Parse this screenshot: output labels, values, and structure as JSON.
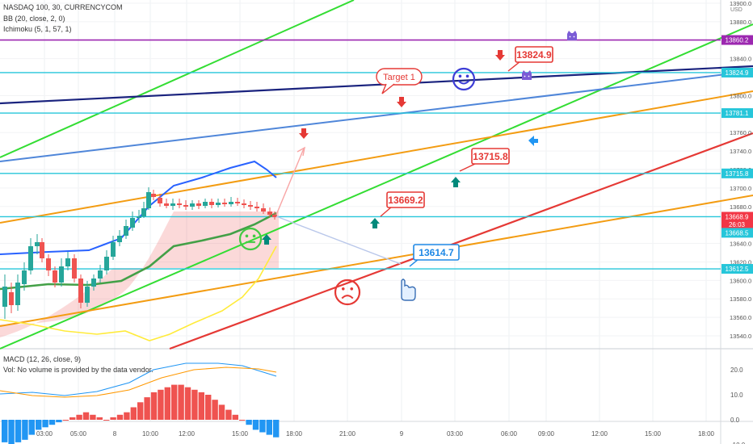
{
  "chart_data": {
    "type": "line",
    "instrument_title": "NASDAQ 100, 30, CURRENCYCOM",
    "indicators": [
      "BB (20, close, 2, 0)",
      "Ichimoku (5, 1, 57, 1)"
    ],
    "currency": "USD",
    "price_axis": {
      "range": [
        13530,
        13920
      ],
      "ticks": [
        13900.0,
        13880.0,
        13840.0,
        13800.0,
        13760.0,
        13740.0,
        13720.0,
        13700.0,
        13680.0,
        13640.0,
        13620.0,
        13600.0,
        13580.0,
        13560.0,
        13540.0
      ]
    },
    "time_axis": {
      "ticks": [
        "03:00",
        "05:00",
        "8",
        "10:00",
        "12:00",
        "15:00",
        "18:00",
        "21:00",
        "9",
        "03:00",
        "06:00",
        "09:00",
        "12:00",
        "15:00",
        "18:00"
      ]
    },
    "price_labels": [
      {
        "text": "13860.2",
        "price": 13860.2,
        "color": "#9c27b0"
      },
      {
        "text": "13824.9",
        "price": 13824.9,
        "color": "#26c6da"
      },
      {
        "text": "13781.1",
        "price": 13781.1,
        "color": "#26c6da"
      },
      {
        "text": "13715.8",
        "price": 13715.8,
        "color": "#26c6da"
      },
      {
        "text": "13668.9",
        "price": 13668.9,
        "color": "#f23645"
      },
      {
        "text": "26:03",
        "price": 13660.5,
        "color": "#f23645"
      },
      {
        "text": "13668.5",
        "price": 13651.5,
        "color": "#26c6da"
      },
      {
        "text": "13612.5",
        "price": 13612.5,
        "color": "#26c6da"
      }
    ],
    "horizontal_levels": [
      {
        "price": 13860.2,
        "color": "#9c27b0"
      },
      {
        "price": 13824.9,
        "color": "#26c6da"
      },
      {
        "price": 13781.1,
        "color": "#26c6da"
      },
      {
        "price": 13715.8,
        "color": "#26c6da"
      },
      {
        "price": 13668.9,
        "color": "#26c6da"
      },
      {
        "price": 13612.5,
        "color": "#26c6da"
      }
    ],
    "annotations": [
      {
        "text": "Target 1",
        "color": "#e53935"
      },
      {
        "text": "13824.9",
        "color": "#e53935"
      },
      {
        "text": "13715.8",
        "color": "#e53935"
      },
      {
        "text": "13669.2",
        "color": "#e53935"
      },
      {
        "text": "13614.7",
        "color": "#1e88e5"
      }
    ],
    "macd_panel": {
      "title": "MACD (12, 26, close, 9)",
      "note": "Vol: No volume is provided by the data vendor.",
      "ticks": [
        "20.0",
        "10.0",
        "0.0",
        "-10.0"
      ],
      "range": [
        -14,
        26
      ],
      "histogram": [
        -9,
        -10,
        -9,
        -8,
        -6,
        -4,
        -3,
        -2,
        -1,
        0,
        1,
        2,
        3,
        2,
        1,
        0,
        1,
        2,
        3,
        5,
        7,
        9,
        11,
        12,
        13,
        14,
        14,
        13,
        12,
        11,
        10,
        8,
        6,
        4,
        2,
        0,
        -2,
        -4,
        -5,
        -6,
        -7
      ]
    },
    "colors": {
      "up": "#26a69a",
      "down": "#ef5350",
      "bb": "#2962ff",
      "ichimoku_base": "#43a047",
      "lagging": "#ffeb3b"
    }
  }
}
